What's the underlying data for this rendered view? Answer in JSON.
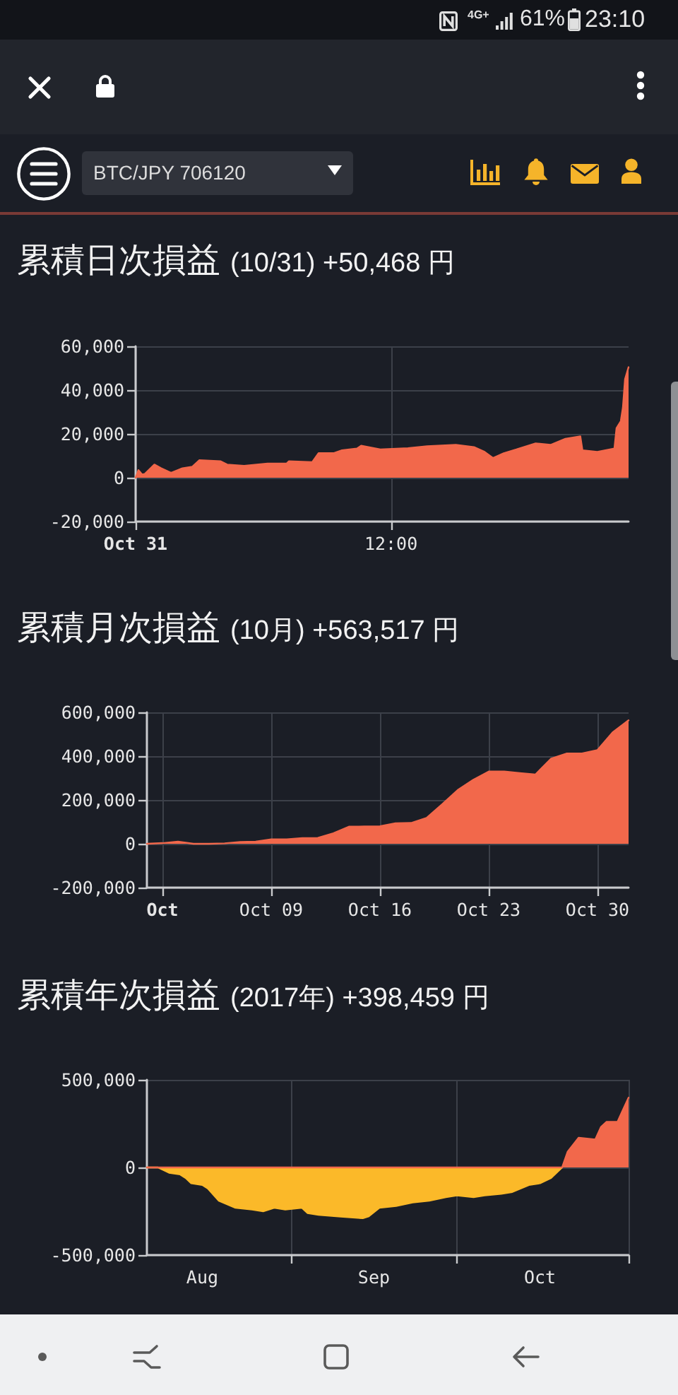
{
  "chart_data": [
    {
      "type": "other",
      "annotations": [
        "4G+",
        "61%",
        "23:10",
        "BTC/JPY 706120"
      ]
    },
    {
      "type": "area",
      "title": "累積日次損益",
      "subtitle": "(10/31) +50,468 円",
      "xlim": [
        "2017-10-31T00:00",
        "2017-10-31T23:10"
      ],
      "xticks": [
        {
          "value": "2017-10-31T00:00",
          "label": "Oct 31"
        },
        {
          "value": "2017-10-31T12:00",
          "label": "12:00"
        }
      ],
      "ylim": [
        -20000,
        60000
      ],
      "yticks": [
        {
          "value": -20000,
          "label": "-20,000"
        },
        {
          "value": 0,
          "label": "0"
        },
        {
          "value": 20000,
          "label": "20,000"
        },
        {
          "value": 40000,
          "label": "40,000"
        },
        {
          "value": 60000,
          "label": "60,000"
        }
      ],
      "grid": true,
      "series": [
        {
          "color": "#f2684b",
          "x": [
            "2017-10-31T00:00",
            "2017-10-31T00:08",
            "2017-10-31T00:18",
            "2017-10-31T00:26",
            "2017-10-31T00:53",
            "2017-10-31T01:12",
            "2017-10-31T01:40",
            "2017-10-31T02:12",
            "2017-10-31T02:40",
            "2017-10-31T03:00",
            "2017-10-31T04:00",
            "2017-10-31T04:18",
            "2017-10-31T05:06",
            "2017-10-31T06:12",
            "2017-10-31T07:06",
            "2017-10-31T07:12",
            "2017-10-31T08:18",
            "2017-10-31T08:36",
            "2017-10-31T09:18",
            "2017-10-31T09:42",
            "2017-10-31T10:24",
            "2017-10-31T10:36",
            "2017-10-31T11:30",
            "2017-10-31T12:48",
            "2017-10-31T13:42",
            "2017-10-31T15:03",
            "2017-10-31T15:54",
            "2017-10-31T16:24",
            "2017-10-31T16:48",
            "2017-10-31T17:18",
            "2017-10-31T17:54",
            "2017-10-31T18:48",
            "2017-10-31T19:30",
            "2017-10-31T20:12",
            "2017-10-31T20:54",
            "2017-10-31T21:00",
            "2017-10-31T21:42",
            "2017-10-31T22:30",
            "2017-10-31T22:36",
            "2017-10-31T22:48",
            "2017-10-31T22:54",
            "2017-10-31T23:00",
            "2017-10-31T23:10"
          ],
          "values": [
            0,
            3500,
            1500,
            1700,
            6000,
            4300,
            2200,
            4300,
            5000,
            8000,
            7500,
            6000,
            5400,
            6500,
            6500,
            7500,
            7100,
            11200,
            11200,
            12500,
            13300,
            14600,
            12900,
            13500,
            14400,
            15000,
            14000,
            11800,
            9000,
            11200,
            12900,
            15700,
            15000,
            17800,
            18900,
            12500,
            11800,
            13300,
            22600,
            25800,
            32000,
            45000,
            50468
          ]
        }
      ]
    },
    {
      "type": "area",
      "title": "累積月次損益",
      "subtitle": "(10月) +563,517 円",
      "xlim": [
        "2017-10-01",
        "2017-11-01"
      ],
      "xticks": [
        {
          "value": "2017-10-02",
          "label": "Oct"
        },
        {
          "value": "2017-10-09",
          "label": "Oct 09"
        },
        {
          "value": "2017-10-16",
          "label": "Oct 16"
        },
        {
          "value": "2017-10-23",
          "label": "Oct 23"
        },
        {
          "value": "2017-10-30",
          "label": "Oct 30"
        }
      ],
      "ylim": [
        -200000,
        600000
      ],
      "yticks": [
        {
          "value": -200000,
          "label": "-200,000"
        },
        {
          "value": 0,
          "label": "0"
        },
        {
          "value": 200000,
          "label": "200,000"
        },
        {
          "value": 400000,
          "label": "400,000"
        },
        {
          "value": 600000,
          "label": "600,000"
        }
      ],
      "grid": true,
      "series": [
        {
          "color": "#f2684b",
          "x": [
            "2017-10-01",
            "2017-10-02",
            "2017-10-03",
            "2017-10-04",
            "2017-10-05",
            "2017-10-06",
            "2017-10-07",
            "2017-10-08",
            "2017-10-09",
            "2017-10-10",
            "2017-10-11",
            "2017-10-12",
            "2017-10-13",
            "2017-10-14",
            "2017-10-15",
            "2017-10-16",
            "2017-10-17",
            "2017-10-18",
            "2017-10-19",
            "2017-10-20",
            "2017-10-21",
            "2017-10-22",
            "2017-10-23",
            "2017-10-24",
            "2017-10-25",
            "2017-10-26",
            "2017-10-27",
            "2017-10-28",
            "2017-10-29",
            "2017-10-30",
            "2017-10-31",
            "2017-11-01"
          ],
          "values": [
            0,
            3000,
            10000,
            0,
            0,
            2000,
            8000,
            10000,
            20000,
            20000,
            26000,
            27000,
            48000,
            78000,
            79000,
            80000,
            94000,
            95000,
            118000,
            180000,
            245000,
            292000,
            330000,
            330000,
            323000,
            316000,
            388000,
            412000,
            412000,
            428000,
            510000,
            563517
          ]
        }
      ]
    },
    {
      "type": "area",
      "title": "累積年次損益",
      "subtitle": "(2017年) +398,459 円",
      "xlim": [
        "2017-08-06",
        "2017-11-01"
      ],
      "xticks": [
        {
          "value": "2017-08-16",
          "label": "Aug"
        },
        {
          "value": "2017-09-01",
          "label": null
        },
        {
          "value": "2017-09-16",
          "label": "Sep"
        },
        {
          "value": "2017-10-01",
          "label": null
        },
        {
          "value": "2017-10-16",
          "label": "Oct"
        },
        {
          "value": "2017-11-01",
          "label": null
        }
      ],
      "ylim": [
        -500000,
        500000
      ],
      "yticks": [
        {
          "value": -500000,
          "label": "-500,000"
        },
        {
          "value": 0,
          "label": "0"
        },
        {
          "value": 500000,
          "label": "500,000"
        }
      ],
      "grid": true,
      "series": [
        {
          "color": "#fbb929",
          "x": [
            "2017-08-06",
            "2017-08-08",
            "2017-08-10",
            "2017-08-12",
            "2017-08-13",
            "2017-08-14",
            "2017-08-16",
            "2017-08-17",
            "2017-08-19",
            "2017-08-22",
            "2017-08-25",
            "2017-08-27",
            "2017-08-29",
            "2017-08-31",
            "2017-09-03",
            "2017-09-04",
            "2017-09-06",
            "2017-09-10",
            "2017-09-14",
            "2017-09-15",
            "2017-09-17",
            "2017-09-20",
            "2017-09-23",
            "2017-09-26",
            "2017-09-29",
            "2017-10-01",
            "2017-10-04",
            "2017-10-06",
            "2017-10-09",
            "2017-10-11",
            "2017-10-14",
            "2017-10-16",
            "2017-10-18",
            "2017-10-20"
          ],
          "values": [
            0,
            0,
            -30000,
            -40000,
            -60000,
            -90000,
            -100000,
            -120000,
            -190000,
            -230000,
            -240000,
            -250000,
            -230000,
            -240000,
            -230000,
            -260000,
            -270000,
            -280000,
            -290000,
            -280000,
            -230000,
            -220000,
            -200000,
            -190000,
            -170000,
            -160000,
            -170000,
            -160000,
            -150000,
            -140000,
            -100000,
            -90000,
            -60000,
            0
          ]
        },
        {
          "color": "#f2684b",
          "x": [
            "2017-08-06",
            "2017-10-20",
            "2017-10-21",
            "2017-10-23",
            "2017-10-26",
            "2017-10-27",
            "2017-10-28",
            "2017-10-30",
            "2017-10-31",
            "2017-11-01"
          ],
          "values": [
            0,
            0,
            90000,
            170000,
            160000,
            230000,
            260000,
            260000,
            330000,
            398459
          ]
        }
      ]
    }
  ]
}
